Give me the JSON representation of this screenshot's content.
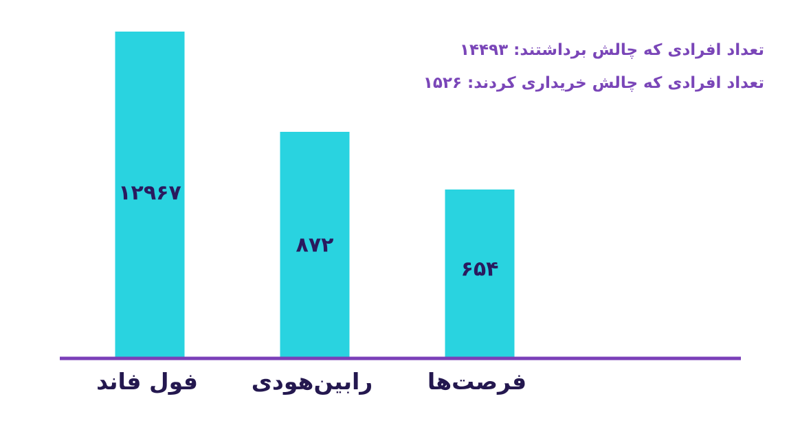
{
  "chart_data": {
    "type": "bar",
    "categories": [
      "فول فاند",
      "رابین‌هودی",
      "فرصت‌ها"
    ],
    "values": [
      12967,
      872,
      654
    ],
    "value_labels": [
      "۱۲۹۶۷",
      "۸۷۲",
      "۶۵۴"
    ],
    "annotations": [
      "تعداد افرادی که چالش برداشتند: ۱۴۴۹۳",
      "تعداد افرادی که چالش خریداری کردند: ۱۵۲۶"
    ],
    "title": "",
    "xlabel": "",
    "ylabel": "",
    "grid": false,
    "colors": {
      "bar": "#29d3e0",
      "axis": "#7b3fb8",
      "value_label": "#2a1a5e",
      "category_label": "#24184f",
      "annotation": "#7a46b8"
    }
  }
}
